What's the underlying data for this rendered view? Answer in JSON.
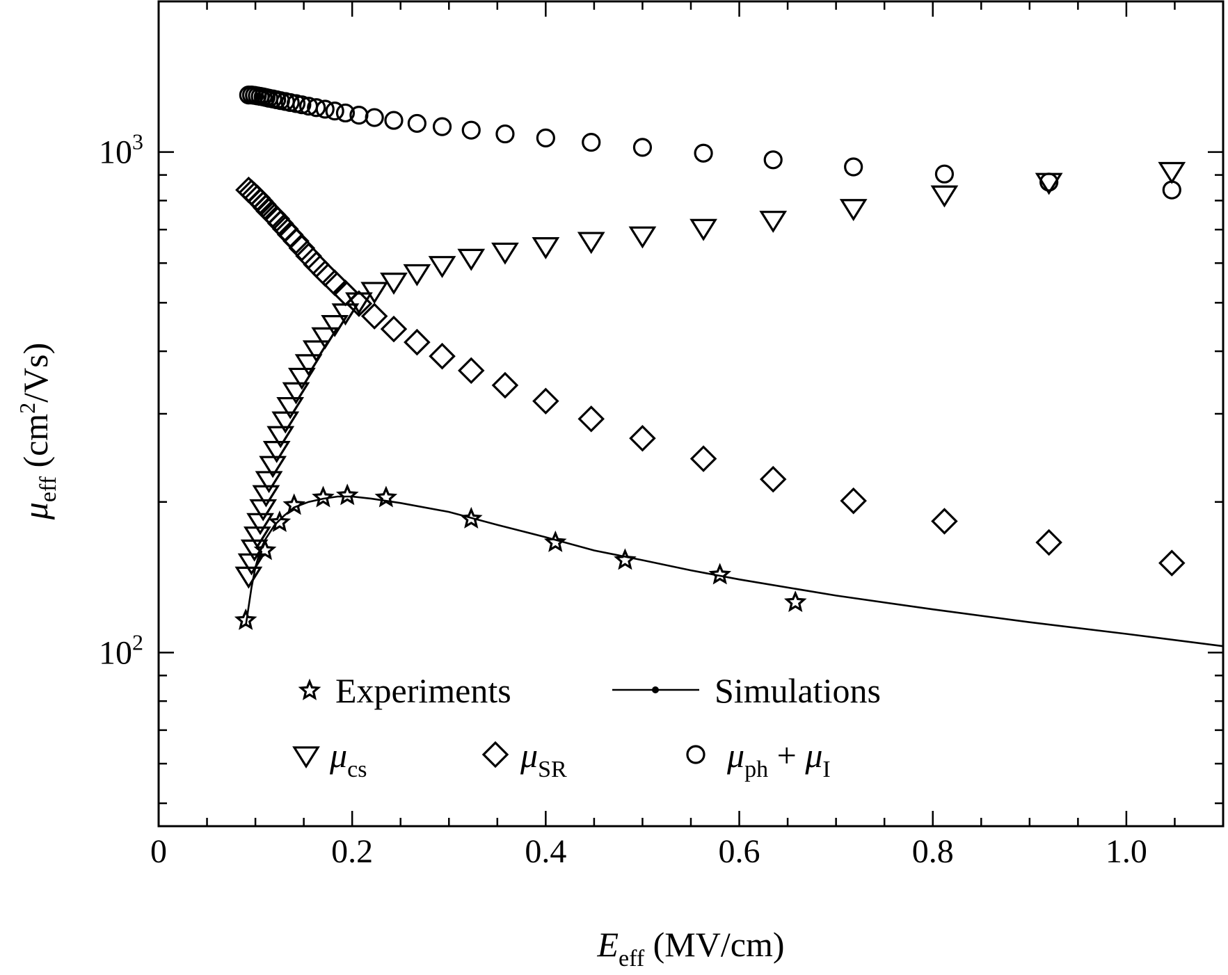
{
  "chart_data": {
    "type": "scatter",
    "title": "",
    "xlabel": {
      "symbol": "E",
      "sub": "eff",
      "unit": " (MV/cm)"
    },
    "ylabel": {
      "symbol": "μ",
      "sub": "eff",
      "unit_pre": " (cm",
      "unit_sup": "2",
      "unit_post": "/Vs)"
    },
    "xlim": [
      0,
      1.1
    ],
    "ylim": [
      45,
      2000
    ],
    "yscale": "log",
    "grid": false,
    "x_ticks": [
      {
        "value": 0,
        "label": "0"
      },
      {
        "value": 0.2,
        "label": "0.2"
      },
      {
        "value": 0.4,
        "label": "0.4"
      },
      {
        "value": 0.6,
        "label": "0.6"
      },
      {
        "value": 0.8,
        "label": "0.8"
      },
      {
        "value": 1.0,
        "label": "1.0"
      }
    ],
    "y_ticks": [
      {
        "value": 100,
        "base": "10",
        "exp": "2"
      },
      {
        "value": 1000,
        "base": "10",
        "exp": "3"
      }
    ],
    "legend": {
      "placement": "bottom-center",
      "experiments": "Experiments",
      "simulations": "Simulations",
      "mu_cs": {
        "symbol": "μ",
        "sub": "cs"
      },
      "mu_sr": {
        "symbol": "μ",
        "sub": "SR"
      },
      "mu_ph_i": {
        "symbol1": "μ",
        "sub1": "ph",
        "plus": " + ",
        "symbol2": "μ",
        "sub2": "I"
      }
    },
    "series": [
      {
        "name": "Experiments",
        "marker": "star",
        "x": [
          0.09,
          0.11,
          0.125,
          0.14,
          0.17,
          0.195,
          0.235,
          0.323,
          0.41,
          0.482,
          0.58,
          0.658
        ],
        "y": [
          116,
          160,
          182,
          197,
          204,
          206,
          204,
          185,
          166,
          153,
          143,
          126
        ]
      },
      {
        "name": "Simulations",
        "marker": "line",
        "x": [
          0.09,
          0.096,
          0.1,
          0.105,
          0.11,
          0.12,
          0.13,
          0.14,
          0.155,
          0.17,
          0.185,
          0.2,
          0.22,
          0.25,
          0.3,
          0.35,
          0.4,
          0.45,
          0.5,
          0.55,
          0.6,
          0.7,
          0.8,
          0.9,
          1.0,
          1.1
        ],
        "y": [
          113,
          135,
          148,
          160,
          168,
          180,
          188,
          195,
          200,
          203,
          205,
          205,
          203,
          199,
          191,
          180,
          170,
          160,
          153,
          146,
          140,
          130,
          122,
          115,
          109,
          103
        ]
      },
      {
        "name": "μcs",
        "marker": "triangle-down",
        "x": [
          0.093,
          0.096,
          0.099,
          0.102,
          0.105,
          0.108,
          0.111,
          0.114,
          0.118,
          0.122,
          0.126,
          0.131,
          0.136,
          0.142,
          0.148,
          0.155,
          0.163,
          0.172,
          0.182,
          0.193,
          0.207,
          0.223,
          0.243,
          0.267,
          0.293,
          0.323,
          0.358,
          0.4,
          0.447,
          0.5,
          0.563,
          0.635,
          0.718,
          0.812,
          0.92,
          1.047
        ],
        "y": [
          143,
          152,
          162,
          172,
          183,
          195,
          208,
          222,
          238,
          255,
          273,
          292,
          312,
          334,
          357,
          380,
          405,
          430,
          455,
          480,
          505,
          530,
          553,
          575,
          597,
          617,
          635,
          651,
          667,
          684,
          708,
          735,
          776,
          826,
          875,
          920
        ]
      },
      {
        "name": "μSR",
        "marker": "diamond",
        "x": [
          0.093,
          0.096,
          0.099,
          0.102,
          0.105,
          0.108,
          0.111,
          0.114,
          0.118,
          0.122,
          0.126,
          0.131,
          0.136,
          0.142,
          0.148,
          0.155,
          0.163,
          0.172,
          0.182,
          0.193,
          0.207,
          0.223,
          0.243,
          0.267,
          0.293,
          0.323,
          0.358,
          0.4,
          0.447,
          0.5,
          0.563,
          0.635,
          0.718,
          0.812,
          0.92,
          1.047
        ],
        "y": [
          840,
          830,
          820,
          810,
          798,
          786,
          774,
          762,
          750,
          736,
          720,
          702,
          684,
          664,
          643,
          620,
          596,
          572,
          548,
          523,
          498,
          470,
          443,
          417,
          391,
          366,
          342,
          318,
          293,
          268,
          244,
          222,
          201,
          183,
          166,
          151
        ]
      },
      {
        "name": "μph + μI",
        "marker": "circle",
        "x": [
          0.093,
          0.096,
          0.099,
          0.102,
          0.105,
          0.108,
          0.111,
          0.114,
          0.118,
          0.122,
          0.126,
          0.131,
          0.136,
          0.142,
          0.148,
          0.155,
          0.163,
          0.172,
          0.182,
          0.193,
          0.207,
          0.223,
          0.243,
          0.267,
          0.293,
          0.323,
          0.358,
          0.4,
          0.447,
          0.5,
          0.563,
          0.635,
          0.718,
          0.812,
          0.92,
          1.047
        ],
        "y": [
          1300,
          1300,
          1298,
          1295,
          1292,
          1289,
          1285,
          1281,
          1277,
          1272,
          1267,
          1262,
          1256,
          1250,
          1243,
          1235,
          1227,
          1218,
          1208,
          1197,
          1185,
          1172,
          1157,
          1141,
          1124,
          1106,
          1087,
          1067,
          1046,
          1022,
          995,
          965,
          934,
          904,
          871,
          840
        ]
      }
    ]
  }
}
